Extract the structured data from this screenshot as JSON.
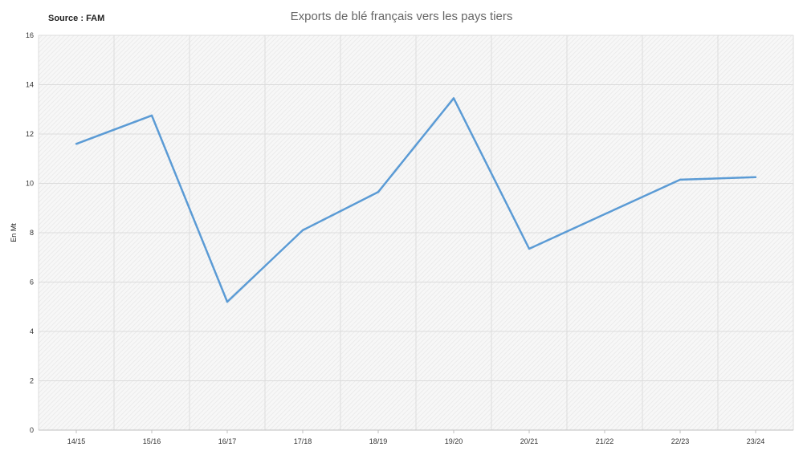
{
  "header": {
    "source": "Source : FAM"
  },
  "chart_data": {
    "type": "line",
    "title": "Exports de blé français vers les pays tiers",
    "xlabel": "",
    "ylabel": "En Mt",
    "categories": [
      "14/15",
      "15/16",
      "16/17",
      "17/18",
      "18/19",
      "19/20",
      "20/21",
      "21/22",
      "22/23",
      "23/24"
    ],
    "series": [
      {
        "values": [
          11.6,
          12.75,
          5.2,
          8.1,
          9.65,
          13.45,
          7.35,
          8.75,
          10.15,
          10.25
        ]
      }
    ],
    "ylim": [
      0,
      16
    ],
    "yticks": [
      0,
      2,
      4,
      6,
      8,
      10,
      12,
      14,
      16
    ],
    "grid": true,
    "line_color": "#5b9bd5",
    "background_pattern_color": "#e8e8e8"
  }
}
